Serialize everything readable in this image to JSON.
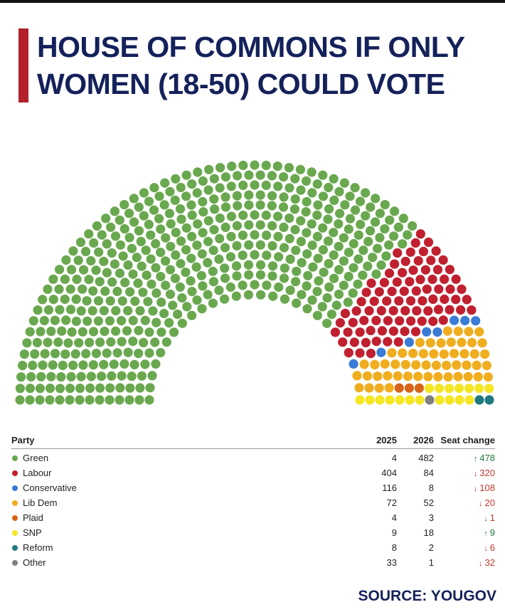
{
  "title": "HOUSE OF COMMONS IF ONLY WOMEN (18-50) COULD VOTE",
  "source": "SOURCE: YOUGOV",
  "chart_data": {
    "type": "table",
    "title": "HOUSE OF COMMONS IF ONLY WOMEN (18-50) COULD VOTE",
    "columns": [
      "Party",
      "2025",
      "2026",
      "Seat change"
    ],
    "rows": [
      {
        "party": "Green",
        "color": "#6aa84f",
        "y2025": 4,
        "y2026": 482,
        "direction": "up",
        "change": "478"
      },
      {
        "party": "Labour",
        "color": "#c0202f",
        "y2025": 404,
        "y2026": 84,
        "direction": "down",
        "change": "320"
      },
      {
        "party": "Conservative",
        "color": "#3a7bd5",
        "y2025": 116,
        "y2026": 8,
        "direction": "down",
        "change": "108"
      },
      {
        "party": "Lib Dem",
        "color": "#f0ad1f",
        "y2025": 72,
        "y2026": 52,
        "direction": "down",
        "change": "20"
      },
      {
        "party": "Plaid",
        "color": "#d8641a",
        "y2025": 4,
        "y2026": 3,
        "direction": "down",
        "change": "1"
      },
      {
        "party": "SNP",
        "color": "#f5e624",
        "y2025": 9,
        "y2026": 18,
        "direction": "up",
        "change": "9"
      },
      {
        "party": "Reform",
        "color": "#1f7a80",
        "y2025": 8,
        "y2026": 2,
        "direction": "down",
        "change": "6"
      },
      {
        "party": "Other",
        "color": "#808080",
        "y2025": 33,
        "y2026": 1,
        "direction": "down",
        "change": "32"
      }
    ],
    "seat_order": [
      "Green",
      "Labour",
      "Conservative",
      "Lib Dem",
      "Plaid",
      "SNP",
      "Reform",
      "Other"
    ]
  }
}
